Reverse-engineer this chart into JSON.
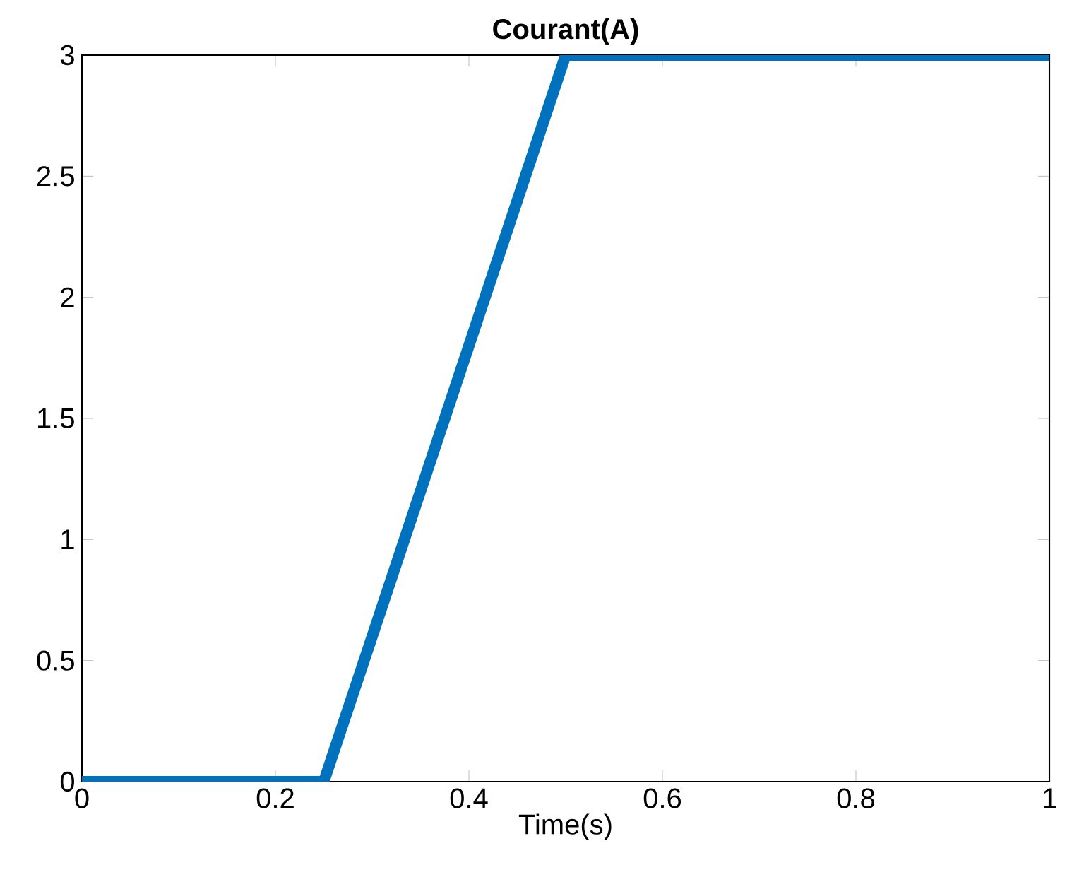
{
  "chart_data": {
    "type": "line",
    "title": "Courant(A)",
    "xlabel": "Time(s)",
    "x": [
      0,
      0.25,
      0.5,
      1
    ],
    "series": [
      {
        "color": "#0072bd",
        "values": [
          0,
          0,
          3,
          3
        ]
      }
    ],
    "xlim": [
      0,
      1
    ],
    "ylim": [
      0,
      3
    ],
    "xticks": [
      0,
      0.2,
      0.4,
      0.6,
      0.8,
      1
    ],
    "yticks": [
      0,
      0.5,
      1,
      1.5,
      2,
      2.5,
      3
    ],
    "marker": "none",
    "line_style": "solid"
  }
}
